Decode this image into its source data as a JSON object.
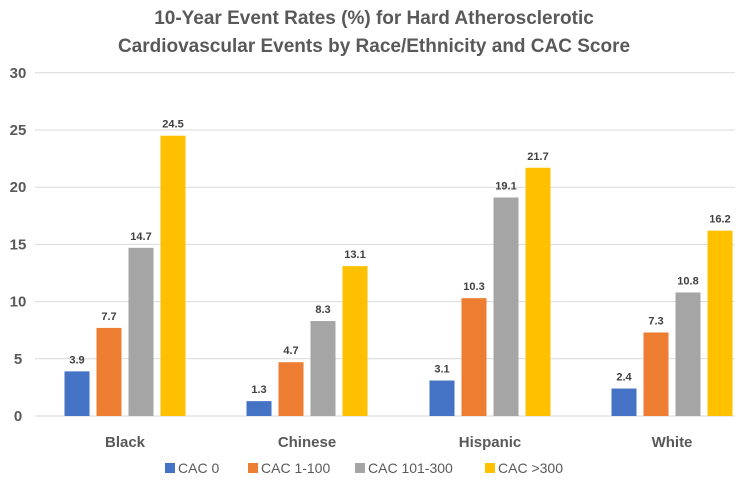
{
  "chart_data": {
    "type": "bar",
    "title": [
      "10-Year Event Rates (%) for Hard Atherosclerotic",
      "Cardiovascular Events by Race/Ethnicity and CAC Score"
    ],
    "xlabel": "",
    "ylabel": "",
    "ylim": [
      0,
      30
    ],
    "yticks": [
      0,
      5,
      10,
      15,
      20,
      25,
      30
    ],
    "grid": true,
    "legend_position": "bottom",
    "categories": [
      "Black",
      "Chinese",
      "Hispanic",
      "White"
    ],
    "series": [
      {
        "name": "CAC 0",
        "color": "#4472C4",
        "values": [
          3.9,
          1.3,
          3.1,
          2.4
        ]
      },
      {
        "name": "CAC 1-100",
        "color": "#ED7D31",
        "values": [
          7.7,
          4.7,
          10.3,
          7.3
        ]
      },
      {
        "name": "CAC 101-300",
        "color": "#A5A5A5",
        "values": [
          14.7,
          8.3,
          19.1,
          10.8
        ]
      },
      {
        "name": "CAC >300",
        "color": "#FFC000",
        "values": [
          24.5,
          13.1,
          21.7,
          16.2
        ]
      }
    ]
  }
}
